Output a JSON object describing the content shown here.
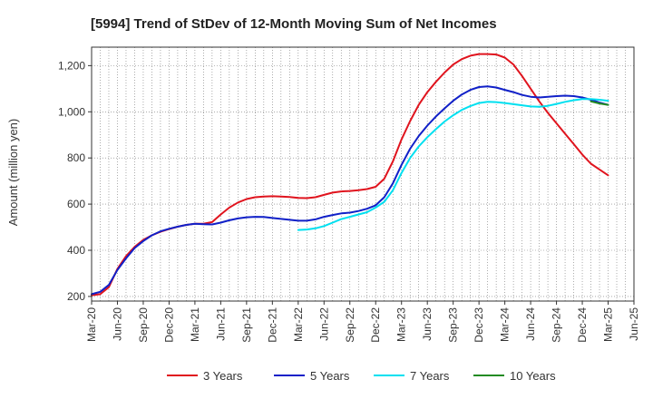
{
  "chart_data": {
    "type": "line",
    "title": "[5994]  Trend of StDev of 12-Month Moving Sum of Net Incomes",
    "ylabel": "Amount (million yen)",
    "xlabel": "",
    "ylim": [
      180,
      1280
    ],
    "yticks": [
      200,
      400,
      600,
      800,
      1000,
      1200
    ],
    "ytick_labels": [
      "200",
      "400",
      "600",
      "800",
      "1,000",
      "1,200"
    ],
    "xlim": [
      "2020-03",
      "2025-06"
    ],
    "xticks": [
      "2020-03",
      "2020-06",
      "2020-09",
      "2020-12",
      "2021-03",
      "2021-06",
      "2021-09",
      "2021-12",
      "2022-03",
      "2022-06",
      "2022-09",
      "2022-12",
      "2023-03",
      "2023-06",
      "2023-09",
      "2023-12",
      "2024-03",
      "2024-06",
      "2024-09",
      "2024-12",
      "2025-03",
      "2025-06"
    ],
    "xtick_labels": [
      "Mar-20",
      "Jun-20",
      "Sep-20",
      "Dec-20",
      "Mar-21",
      "Jun-21",
      "Sep-21",
      "Dec-21",
      "Mar-22",
      "Jun-22",
      "Sep-22",
      "Dec-22",
      "Mar-23",
      "Jun-23",
      "Sep-23",
      "Dec-23",
      "Mar-24",
      "Jun-24",
      "Sep-24",
      "Dec-24",
      "Mar-25",
      "Jun-25"
    ],
    "grid": true,
    "legend_position": "bottom",
    "series": [
      {
        "name": "3 Years",
        "color": "#e0141e",
        "x": [
          "2020-03",
          "2020-04",
          "2020-05",
          "2020-06",
          "2020-07",
          "2020-08",
          "2020-09",
          "2020-10",
          "2020-11",
          "2020-12",
          "2021-01",
          "2021-02",
          "2021-03",
          "2021-04",
          "2021-05",
          "2021-06",
          "2021-07",
          "2021-08",
          "2021-09",
          "2021-10",
          "2021-11",
          "2021-12",
          "2022-01",
          "2022-02",
          "2022-03",
          "2022-04",
          "2022-05",
          "2022-06",
          "2022-07",
          "2022-08",
          "2022-09",
          "2022-10",
          "2022-11",
          "2022-12",
          "2023-01",
          "2023-02",
          "2023-03",
          "2023-04",
          "2023-05",
          "2023-06",
          "2023-07",
          "2023-08",
          "2023-09",
          "2023-10",
          "2023-11",
          "2023-12",
          "2024-01",
          "2024-02",
          "2024-03",
          "2024-04",
          "2024-05",
          "2024-06",
          "2024-07",
          "2024-08",
          "2024-09",
          "2024-10",
          "2024-11",
          "2024-12",
          "2025-01",
          "2025-02",
          "2025-03"
        ],
        "values": [
          205,
          210,
          240,
          320,
          375,
          415,
          445,
          465,
          480,
          492,
          502,
          510,
          515,
          515,
          522,
          555,
          585,
          607,
          622,
          630,
          633,
          634,
          633,
          631,
          627,
          626,
          630,
          640,
          650,
          655,
          657,
          660,
          665,
          675,
          710,
          785,
          880,
          960,
          1030,
          1085,
          1130,
          1170,
          1205,
          1228,
          1243,
          1250,
          1250,
          1248,
          1235,
          1205,
          1155,
          1100,
          1045,
          995,
          950,
          905,
          860,
          815,
          775,
          750,
          725
        ]
      },
      {
        "name": "5 Years",
        "color": "#1020c8",
        "x": [
          "2020-03",
          "2020-04",
          "2020-05",
          "2020-06",
          "2020-07",
          "2020-08",
          "2020-09",
          "2020-10",
          "2020-11",
          "2020-12",
          "2021-01",
          "2021-02",
          "2021-03",
          "2021-04",
          "2021-05",
          "2021-06",
          "2021-07",
          "2021-08",
          "2021-09",
          "2021-10",
          "2021-11",
          "2021-12",
          "2022-01",
          "2022-02",
          "2022-03",
          "2022-04",
          "2022-05",
          "2022-06",
          "2022-07",
          "2022-08",
          "2022-09",
          "2022-10",
          "2022-11",
          "2022-12",
          "2023-01",
          "2023-02",
          "2023-03",
          "2023-04",
          "2023-05",
          "2023-06",
          "2023-07",
          "2023-08",
          "2023-09",
          "2023-10",
          "2023-11",
          "2023-12",
          "2024-01",
          "2024-02",
          "2024-03",
          "2024-04",
          "2024-05",
          "2024-06",
          "2024-07",
          "2024-08",
          "2024-09",
          "2024-10",
          "2024-11",
          "2024-12",
          "2025-01",
          "2025-02",
          "2025-03"
        ],
        "values": [
          210,
          220,
          250,
          315,
          365,
          410,
          440,
          465,
          482,
          493,
          502,
          510,
          515,
          513,
          512,
          520,
          530,
          538,
          543,
          545,
          544,
          540,
          536,
          532,
          528,
          528,
          534,
          545,
          553,
          560,
          563,
          570,
          580,
          595,
          630,
          690,
          770,
          840,
          895,
          940,
          980,
          1015,
          1048,
          1075,
          1095,
          1107,
          1110,
          1105,
          1095,
          1085,
          1073,
          1065,
          1062,
          1065,
          1068,
          1070,
          1068,
          1062,
          1052,
          1040,
          1030
        ]
      },
      {
        "name": "7 Years",
        "color": "#00e0f0",
        "x": [
          "2022-03",
          "2022-04",
          "2022-05",
          "2022-06",
          "2022-07",
          "2022-08",
          "2022-09",
          "2022-10",
          "2022-11",
          "2022-12",
          "2023-01",
          "2023-02",
          "2023-03",
          "2023-04",
          "2023-05",
          "2023-06",
          "2023-07",
          "2023-08",
          "2023-09",
          "2023-10",
          "2023-11",
          "2023-12",
          "2024-01",
          "2024-02",
          "2024-03",
          "2024-04",
          "2024-05",
          "2024-06",
          "2024-07",
          "2024-08",
          "2024-09",
          "2024-10",
          "2024-11",
          "2024-12",
          "2025-01",
          "2025-02",
          "2025-03"
        ],
        "values": [
          488,
          490,
          495,
          505,
          520,
          535,
          545,
          555,
          565,
          585,
          610,
          660,
          735,
          800,
          850,
          890,
          925,
          958,
          985,
          1008,
          1025,
          1038,
          1043,
          1042,
          1038,
          1033,
          1028,
          1023,
          1022,
          1026,
          1034,
          1043,
          1050,
          1055,
          1055,
          1052,
          1048
        ]
      },
      {
        "name": "10 Years",
        "color": "#228b22",
        "x": [
          "2025-01",
          "2025-02",
          "2025-03"
        ],
        "values": [
          1045,
          1036,
          1030
        ]
      }
    ]
  }
}
